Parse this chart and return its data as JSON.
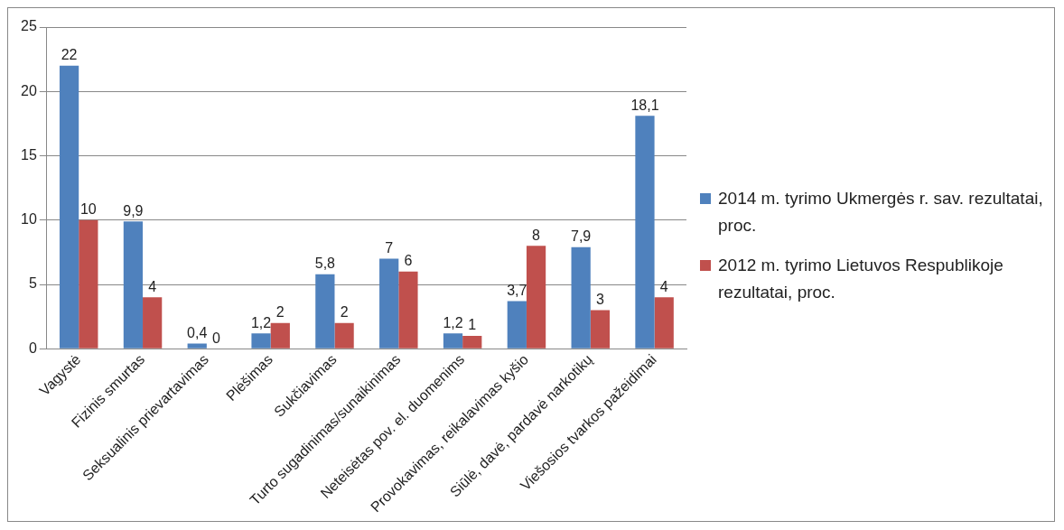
{
  "chart_data": {
    "type": "bar",
    "categories": [
      "Vagystė",
      "Fizinis smurtas",
      "Seksualinis prievartavimas",
      "Plėšimas",
      "Sukčiavimas",
      "Turto sugadinimas/sunaikinimas",
      "Neteisėtas pov. el. duomenims",
      "Provokavimas, reikalavimas kyšio",
      "Siūlė, davė, pardavė narkotikų",
      "Viešosios tvarkos pažeidimai"
    ],
    "series": [
      {
        "name": "2014 m. tyrimo Ukmergės r. sav. rezultatai, proc.",
        "color": "#4f81bd",
        "values": [
          22,
          9.9,
          0.4,
          1.2,
          5.8,
          7,
          1.2,
          3.7,
          7.9,
          18.1
        ],
        "value_labels": [
          "22",
          "9,9",
          "0,4",
          "1,2",
          "5,8",
          "7",
          "1,2",
          "3,7",
          "7,9",
          "18,1"
        ]
      },
      {
        "name": "2012 m. tyrimo Lietuvos Respublikoje rezultatai, proc.",
        "color": "#c0504d",
        "values": [
          10,
          4,
          0,
          2,
          2,
          6,
          1,
          8,
          3,
          4
        ],
        "value_labels": [
          "10",
          "4",
          "0",
          "2",
          "2",
          "6",
          "1",
          "8",
          "3",
          "4"
        ]
      }
    ],
    "ylim": [
      0,
      25
    ],
    "yticks": [
      0,
      5,
      10,
      15,
      20,
      25
    ],
    "grid": "y",
    "legend": "right"
  }
}
